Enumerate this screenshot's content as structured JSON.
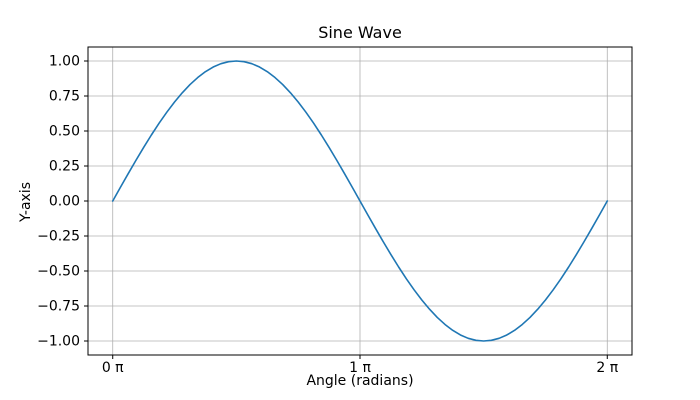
{
  "figure": {
    "background_color": "#ffffff"
  },
  "chart_data": {
    "type": "line",
    "title": "Sine Wave",
    "xlabel": "Angle (radians)",
    "ylabel": "Y-axis",
    "x_unit": "pi_radians",
    "x_tick_values_pi": [
      0,
      1,
      2
    ],
    "x_tick_labels": [
      "0 π",
      "1 π",
      "2 π"
    ],
    "y_tick_values": [
      1.0,
      0.75,
      0.5,
      0.25,
      0.0,
      -0.25,
      -0.5,
      -0.75,
      -1.0
    ],
    "y_tick_labels": [
      "1.00",
      "0.75",
      "0.50",
      "0.25",
      "0.00",
      "−0.25",
      "−0.50",
      "−0.75",
      "−1.00"
    ],
    "xlim_pi": [
      -0.1,
      2.1
    ],
    "ylim": [
      -1.1,
      1.1
    ],
    "grid": true,
    "legend": "none",
    "line_color": "#1f77b4",
    "grid_color": "#b0b0b0",
    "axis_color": "#000000",
    "series": [
      {
        "name": "sin(x)",
        "x_pi": [
          0,
          0.03125,
          0.0625,
          0.09375,
          0.125,
          0.15625,
          0.1875,
          0.21875,
          0.25,
          0.28125,
          0.3125,
          0.34375,
          0.375,
          0.40625,
          0.4375,
          0.46875,
          0.5,
          0.53125,
          0.5625,
          0.59375,
          0.625,
          0.65625,
          0.6875,
          0.71875,
          0.75,
          0.78125,
          0.8125,
          0.84375,
          0.875,
          0.90625,
          0.9375,
          0.96875,
          1,
          1.03125,
          1.0625,
          1.09375,
          1.125,
          1.15625,
          1.1875,
          1.21875,
          1.25,
          1.28125,
          1.3125,
          1.34375,
          1.375,
          1.40625,
          1.4375,
          1.46875,
          1.5,
          1.53125,
          1.5625,
          1.59375,
          1.625,
          1.65625,
          1.6875,
          1.71875,
          1.75,
          1.78125,
          1.8125,
          1.84375,
          1.875,
          1.90625,
          1.9375,
          1.96875,
          2
        ],
        "y": [
          0,
          0.098,
          0.1951,
          0.2903,
          0.3827,
          0.4714,
          0.5556,
          0.6344,
          0.7071,
          0.773,
          0.8315,
          0.8819,
          0.9239,
          0.9569,
          0.9808,
          0.9952,
          1,
          0.9952,
          0.9808,
          0.9569,
          0.9239,
          0.8819,
          0.8315,
          0.773,
          0.7071,
          0.6344,
          0.5556,
          0.4714,
          0.3827,
          0.2903,
          0.1951,
          0.098,
          0,
          -0.098,
          -0.1951,
          -0.2903,
          -0.3827,
          -0.4714,
          -0.5556,
          -0.6344,
          -0.7071,
          -0.773,
          -0.8315,
          -0.8819,
          -0.9239,
          -0.9569,
          -0.9808,
          -0.9952,
          -1,
          -0.9952,
          -0.9808,
          -0.9569,
          -0.9239,
          -0.8819,
          -0.8315,
          -0.773,
          -0.7071,
          -0.6344,
          -0.5556,
          -0.4714,
          -0.3827,
          -0.2903,
          -0.1951,
          -0.098,
          0
        ]
      }
    ]
  }
}
